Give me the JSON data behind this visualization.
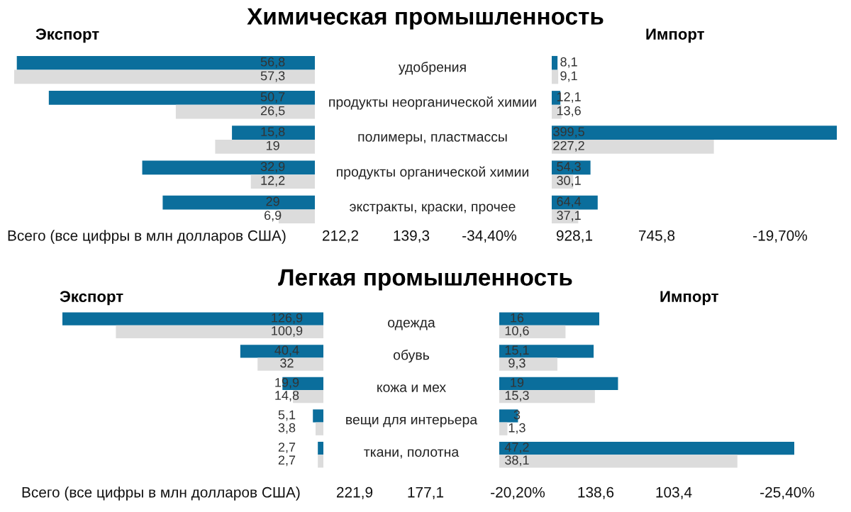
{
  "chart_data": [
    {
      "type": "bar",
      "orientation": "horizontal",
      "title": "Химическая промышленность",
      "subtitle": "Экспорт",
      "categories": [
        "удобрения",
        "продукты неорганической химии",
        "полимеры, пластмассы",
        "продукты органической химии",
        "экстракты, краски, прочее"
      ],
      "series": [
        {
          "color": "#0b6e9c",
          "values": [
            56.8,
            50.7,
            15.8,
            32.9,
            29
          ],
          "value_labels": [
            "56,8",
            "50,7",
            "15,8",
            "32,9",
            "29"
          ]
        },
        {
          "color": "#dcdcdc",
          "values": [
            57.3,
            26.5,
            19,
            12.2,
            6.9
          ],
          "value_labels": [
            "57,3",
            "26,5",
            "19",
            "12,2",
            "6,9"
          ]
        }
      ],
      "annotations": [
        "Всего (все цифры в млн долларов США)",
        "212,2",
        "139,3",
        "-34,40%"
      ]
    },
    {
      "type": "bar",
      "orientation": "horizontal",
      "subtitle": "Импорт",
      "categories": [
        null,
        null,
        null,
        null,
        null
      ],
      "series": [
        {
          "color": "#0b6e9c",
          "values": [
            8.1,
            12.1,
            399.5,
            54.3,
            64.4
          ],
          "value_labels": [
            "8,1",
            "12,1",
            "399,5",
            "54,3",
            "64,4"
          ]
        },
        {
          "color": "#dcdcdc",
          "values": [
            9.1,
            13.6,
            227.2,
            30.1,
            37.1
          ],
          "value_labels": [
            "9,1",
            "13,6",
            "227,2",
            "30,1",
            "37,1"
          ]
        }
      ],
      "annotations": [
        "928,1",
        "745,8",
        "-19,70%"
      ]
    },
    {
      "type": "bar",
      "orientation": "horizontal",
      "title": "Легкая промышленность",
      "subtitle": "Экспорт",
      "categories": [
        "одежда",
        "обувь",
        "кожа и мех",
        "вещи для интерьера",
        "ткани, полотна"
      ],
      "series": [
        {
          "color": "#0b6e9c",
          "values": [
            126.9,
            40.4,
            19.9,
            5.1,
            2.7
          ],
          "value_labels": [
            "126,9",
            "40,4",
            "19,9",
            "5,1",
            "2,7"
          ]
        },
        {
          "color": "#dcdcdc",
          "values": [
            100.9,
            32,
            14.8,
            3.8,
            2.7
          ],
          "value_labels": [
            "100,9",
            "32",
            "14,8",
            "3,8",
            "2,7"
          ]
        }
      ],
      "annotations": [
        "Всего (все цифры в млн долларов США)",
        "221,9",
        "177,1",
        "-20,20%"
      ]
    },
    {
      "type": "bar",
      "orientation": "horizontal",
      "subtitle": "Импорт",
      "categories": [
        null,
        null,
        null,
        null,
        null
      ],
      "series": [
        {
          "color": "#0b6e9c",
          "values": [
            16,
            15.1,
            19,
            3,
            47.2
          ],
          "value_labels": [
            "16",
            "15,1",
            "19",
            "3",
            "47,2"
          ]
        },
        {
          "color": "#dcdcdc",
          "values": [
            10.6,
            9.3,
            15.3,
            1.3,
            38.1
          ],
          "value_labels": [
            "10,6",
            "9,3",
            "15,3",
            "1,3",
            "38,1"
          ]
        }
      ],
      "annotations": [
        "138,6",
        "103,4",
        "-25,40%"
      ]
    }
  ]
}
